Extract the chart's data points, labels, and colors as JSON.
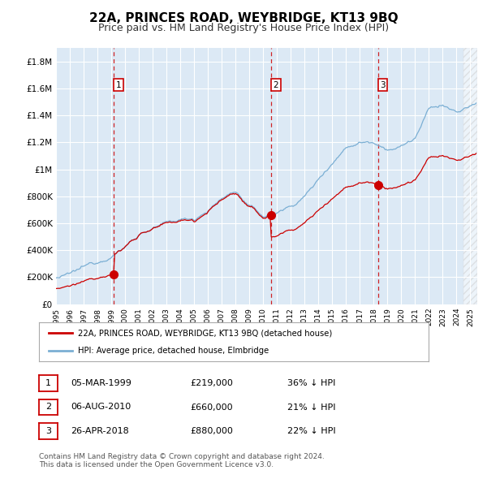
{
  "title": "22A, PRINCES ROAD, WEYBRIDGE, KT13 9BQ",
  "subtitle": "Price paid vs. HM Land Registry's House Price Index (HPI)",
  "title_fontsize": 11,
  "subtitle_fontsize": 9,
  "background_color": "#ffffff",
  "plot_bg_color": "#dce9f5",
  "grid_color": "#ffffff",
  "ylim": [
    0,
    1900000
  ],
  "yticks": [
    0,
    200000,
    400000,
    600000,
    800000,
    1000000,
    1200000,
    1400000,
    1600000,
    1800000
  ],
  "ytick_labels": [
    "£0",
    "£200K",
    "£400K",
    "£600K",
    "£800K",
    "£1M",
    "£1.2M",
    "£1.4M",
    "£1.6M",
    "£1.8M"
  ],
  "sale_dates": [
    1999.17,
    2010.58,
    2018.31
  ],
  "sale_prices": [
    219000,
    660000,
    880000
  ],
  "sale_labels": [
    "1",
    "2",
    "3"
  ],
  "sale_date_strs": [
    "05-MAR-1999",
    "06-AUG-2010",
    "26-APR-2018"
  ],
  "sale_price_strs": [
    "£219,000",
    "£660,000",
    "£880,000"
  ],
  "sale_hpi_strs": [
    "36% ↓ HPI",
    "21% ↓ HPI",
    "22% ↓ HPI"
  ],
  "line_red_color": "#cc0000",
  "line_blue_color": "#7bafd4",
  "marker_red_color": "#cc0000",
  "dashed_color": "#cc0000",
  "legend_label_red": "22A, PRINCES ROAD, WEYBRIDGE, KT13 9BQ (detached house)",
  "legend_label_blue": "HPI: Average price, detached house, Elmbridge",
  "footer": "Contains HM Land Registry data © Crown copyright and database right 2024.\nThis data is licensed under the Open Government Licence v3.0.",
  "xmin": 1995.0,
  "xmax": 2025.5
}
